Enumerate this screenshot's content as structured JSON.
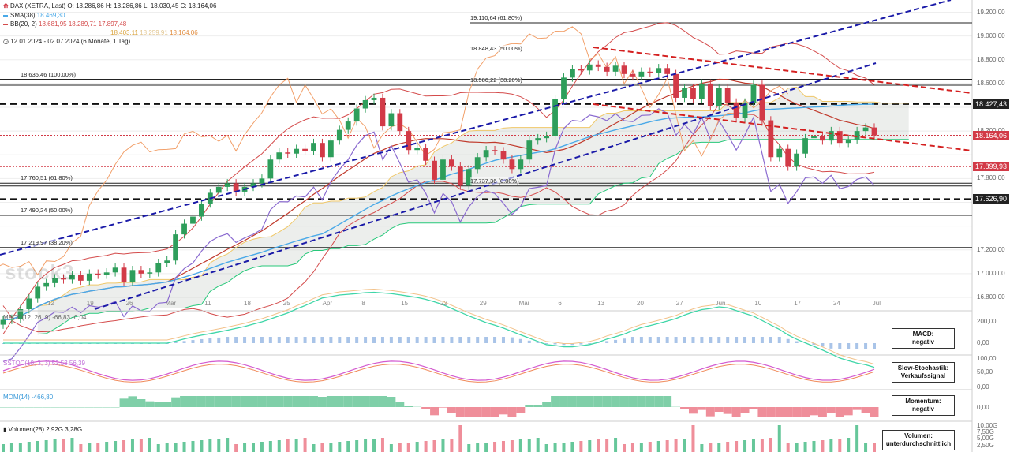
{
  "header": {
    "logo_icon": "dax-logo-icon",
    "title": "DAX (XETRA, Last)",
    "ohlc": "O: 18.286,86  H: 18.286,86  L: 18.030,45  C: 18.164,06",
    "sma_label": "SMA(38)",
    "sma_value": "18.469,30",
    "bb_label": "BB(20, 2)",
    "bb_values": "18.681,95  18.289,71  17.897,48",
    "extra_values": [
      "18.403,11",
      "18.259,91",
      "18.164,06"
    ],
    "date_range": "12.01.2024 - 02.07.2024 (6 Monate, 1 Tag)"
  },
  "watermark": "stock3",
  "colors": {
    "up": "#2e9e5b",
    "down": "#d23a47",
    "sma": "#49a9e8",
    "bb": "#d44b4b",
    "dash_blue": "#1a1aa8",
    "dash_red": "#d42020",
    "dash_black": "#111111"
  },
  "price_axis": [
    "19.200,00",
    "19.000,00",
    "18.800,00",
    "18.600,00",
    "18.200,00",
    "17.800,00",
    "17.200,00",
    "17.000,00",
    "16.800,00"
  ],
  "price_badges": [
    {
      "value": "18.427,43",
      "color": "#222222"
    },
    {
      "value": "18.164,06",
      "color": "#d23a47"
    },
    {
      "value": "17.899,93",
      "color": "#d23a47"
    },
    {
      "value": "17.626,90",
      "color": "#222222"
    }
  ],
  "x_labels": [
    "12",
    "19",
    "26",
    "Mar",
    "11",
    "18",
    "25",
    "Apr",
    "8",
    "15",
    "22",
    "29",
    "Mai",
    "6",
    "13",
    "20",
    "27",
    "Jun",
    "10",
    "17",
    "24",
    "Jul"
  ],
  "fib_labels": [
    "19.110,64 (61.80%)",
    "18.848,43 (50.00%)",
    "18.635,46 (100.00%)",
    "18.586,22 (38.20%)",
    "17.760,51 (61.80%)",
    "17.737,36 (0.00%)",
    "17.490,24 (50.00%)",
    "17.219,97 (38.20%)"
  ],
  "panels": {
    "macd": {
      "label": "MACD(12, 26, 9)",
      "values": "-66,83  -0,04",
      "badge_title": "MACD:",
      "badge_text": "negativ",
      "axis": [
        "200,00",
        "0,00"
      ]
    },
    "stoch": {
      "label": "SSTOC(10, 3, 3)",
      "values": "52,53  56,39",
      "badge_title": "Slow-Stochastik:",
      "badge_text": "Verkaufssignal",
      "axis": [
        "100,00",
        "50,00",
        "0,00"
      ]
    },
    "mom": {
      "label": "MOM(14)",
      "values": "-466,80",
      "badge_title": "Momentum:",
      "badge_text": "negativ",
      "axis": [
        "0,00"
      ]
    },
    "vol": {
      "label": "Volumen(28)",
      "values": "2,92G  3,28G",
      "badge_title": "Volumen:",
      "badge_text": "unterdurchschnittlich",
      "axis": [
        "10,00G",
        "7,50G",
        "5,00G",
        "2,50G"
      ]
    }
  },
  "chart_data": {
    "type": "candlestick",
    "instrument": "DAX",
    "x_start": "2024-01-12",
    "x_end": "2024-07-02",
    "ylim": [
      16700,
      19250
    ],
    "closes": [
      16610,
      16620,
      16700,
      16790,
      16890,
      16920,
      16960,
      16950,
      16990,
      16940,
      17000,
      16990,
      17010,
      17050,
      16930,
      17030,
      17000,
      17010,
      17090,
      17110,
      17330,
      17420,
      17480,
      17590,
      17680,
      17730,
      17760,
      17690,
      17730,
      17760,
      17800,
      17960,
      18020,
      18010,
      18050,
      18030,
      18100,
      17980,
      18120,
      18210,
      18280,
      18390,
      18460,
      18480,
      18240,
      18350,
      18200,
      18040,
      18060,
      17950,
      17790,
      17960,
      17900,
      17740,
      17880,
      17980,
      18040,
      18030,
      17960,
      17880,
      17960,
      18120,
      18140,
      18160,
      18470,
      18650,
      18720,
      18710,
      18760,
      18740,
      18700,
      18750,
      18680,
      18660,
      18700,
      18690,
      18730,
      18680,
      18480,
      18560,
      18470,
      18600,
      18410,
      18560,
      18440,
      18310,
      18440,
      18590,
      18290,
      17980,
      18050,
      17900,
      18010,
      18140,
      18160,
      18120,
      18200,
      18100,
      18130,
      18200,
      18230,
      18164
    ]
  }
}
